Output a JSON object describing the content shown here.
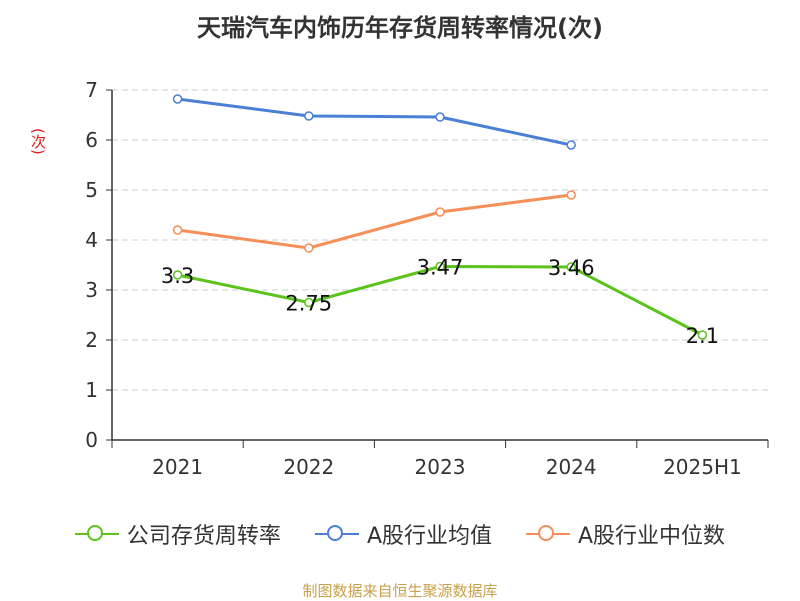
{
  "chart_data": {
    "type": "line",
    "title": "天瑞汽车内饰历年存货周转率情况(次)",
    "ylabel": "(次)",
    "xlabel": "",
    "categories": [
      "2021",
      "2022",
      "2023",
      "2024",
      "2025H1"
    ],
    "ylim": [
      0,
      7
    ],
    "yticks": [
      0,
      1,
      2,
      3,
      4,
      5,
      6,
      7
    ],
    "grid": true,
    "legend_position": "bottom",
    "series": [
      {
        "name": "公司存货周转率",
        "color": "#5cc21c",
        "values": [
          3.3,
          2.75,
          3.47,
          3.46,
          2.1
        ],
        "labels": [
          "3.3",
          "2.75",
          "3.47",
          "3.46",
          "2.1"
        ],
        "show_labels": true
      },
      {
        "name": "A股行业均值",
        "color": "#4a7fd6",
        "values": [
          6.82,
          6.48,
          6.46,
          5.9,
          null
        ],
        "show_labels": false
      },
      {
        "name": "A股行业中位数",
        "color": "#f58e58",
        "values": [
          4.2,
          3.84,
          4.56,
          4.9,
          null
        ],
        "show_labels": false
      }
    ]
  },
  "source": "制图数据来自恒生聚源数据库"
}
